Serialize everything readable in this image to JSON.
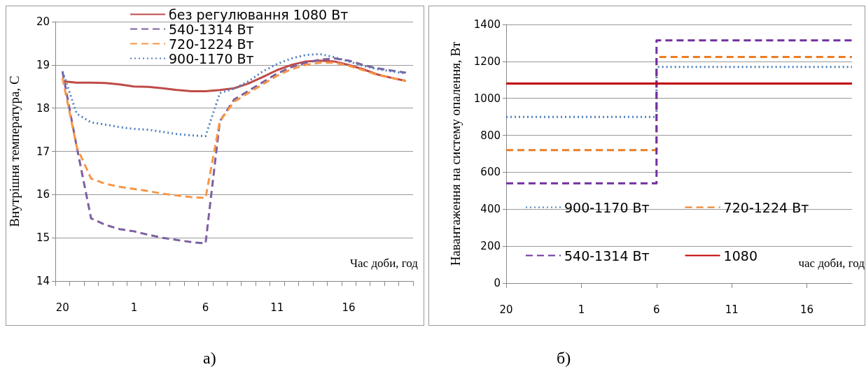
{
  "chart_data": [
    {
      "type": "line",
      "xlabel": "Час доби, год",
      "ylabel": "Внутрішня температура, С",
      "annotations": [
        "а)"
      ],
      "categories": [
        "20",
        null,
        null,
        null,
        null,
        "1",
        null,
        null,
        null,
        null,
        "6",
        null,
        null,
        null,
        null,
        "11",
        null,
        null,
        null,
        null,
        "16",
        null,
        null,
        null,
        null
      ],
      "ylim": [
        14,
        20
      ],
      "yticks": [
        14,
        15,
        16,
        17,
        18,
        19,
        20
      ],
      "grid": "y",
      "legend": "top",
      "marker": "none",
      "series": [
        {
          "name": "без регулювання 1080 Вт",
          "color": "#be4b48",
          "line_style": "solid",
          "values": [
            18.62,
            18.59,
            18.59,
            18.58,
            18.55,
            18.5,
            18.49,
            18.46,
            18.42,
            18.39,
            18.39,
            18.42,
            18.46,
            18.57,
            18.72,
            18.88,
            19.0,
            19.08,
            19.1,
            19.08,
            19.0,
            18.9,
            18.78,
            18.7,
            18.63
          ]
        },
        {
          "name": "540-1314 Вт",
          "color": "#7d60a0",
          "line_style": "dashed",
          "values": [
            18.85,
            17.1,
            15.45,
            15.3,
            15.2,
            15.15,
            15.07,
            15.0,
            14.95,
            14.9,
            14.87,
            17.7,
            18.2,
            18.4,
            18.6,
            18.8,
            18.95,
            19.05,
            19.12,
            19.15,
            19.1,
            19.0,
            18.92,
            18.87,
            18.82
          ]
        },
        {
          "name": "720-1224 Вт",
          "color": "#f79646",
          "line_style": "dashed",
          "values": [
            18.7,
            17.1,
            16.37,
            16.25,
            16.18,
            16.13,
            16.08,
            16.02,
            15.98,
            15.94,
            15.92,
            17.7,
            18.15,
            18.35,
            18.55,
            18.75,
            18.9,
            19.0,
            19.05,
            19.05,
            18.98,
            18.88,
            18.77,
            18.7,
            18.63
          ]
        },
        {
          "name": "900-1170 Вт",
          "color": "#4f81bd",
          "line_style": "dotted",
          "values": [
            18.85,
            17.87,
            17.67,
            17.62,
            17.56,
            17.52,
            17.5,
            17.45,
            17.4,
            17.37,
            17.35,
            18.35,
            18.45,
            18.62,
            18.85,
            19.02,
            19.15,
            19.23,
            19.25,
            19.18,
            19.08,
            18.98,
            18.9,
            18.85,
            18.8
          ]
        }
      ]
    },
    {
      "type": "step",
      "xlabel": "час доби, год",
      "ylabel": "Навантаження на систему опалення, Вт",
      "annotations": [
        "б)"
      ],
      "categories": [
        "20",
        null,
        null,
        null,
        null,
        "1",
        null,
        null,
        null,
        null,
        "6",
        null,
        null,
        null,
        null,
        "11",
        null,
        null,
        null,
        null,
        "16",
        null,
        null,
        null
      ],
      "ylim": [
        0,
        1400
      ],
      "yticks": [
        0,
        200,
        400,
        600,
        800,
        1000,
        1200,
        1400
      ],
      "grid": "y",
      "legend": "bottom",
      "marker": "none",
      "series": [
        {
          "name": "900-1170 Вт",
          "color": "#4f81bd",
          "line_style": "dotted",
          "values": [
            900,
            900,
            900,
            900,
            900,
            900,
            900,
            900,
            900,
            900,
            1170,
            1170,
            1170,
            1170,
            1170,
            1170,
            1170,
            1170,
            1170,
            1170,
            1170,
            1170,
            1170,
            1170
          ]
        },
        {
          "name": "720-1224 Вт",
          "color": "#ec7c22",
          "line_style": "dashed",
          "values": [
            720,
            720,
            720,
            720,
            720,
            720,
            720,
            720,
            720,
            720,
            1224,
            1224,
            1224,
            1224,
            1224,
            1224,
            1224,
            1224,
            1224,
            1224,
            1224,
            1224,
            1224,
            1224
          ]
        },
        {
          "name": "540-1314 Вт",
          "color": "#7030a0",
          "line_style": "dashed",
          "values": [
            540,
            540,
            540,
            540,
            540,
            540,
            540,
            540,
            540,
            540,
            1314,
            1314,
            1314,
            1314,
            1314,
            1314,
            1314,
            1314,
            1314,
            1314,
            1314,
            1314,
            1314,
            1314
          ]
        },
        {
          "name": "1080",
          "color": "#c00000",
          "line_style": "solid",
          "values": [
            1080,
            1080,
            1080,
            1080,
            1080,
            1080,
            1080,
            1080,
            1080,
            1080,
            1080,
            1080,
            1080,
            1080,
            1080,
            1080,
            1080,
            1080,
            1080,
            1080,
            1080,
            1080,
            1080,
            1080
          ]
        }
      ]
    }
  ]
}
